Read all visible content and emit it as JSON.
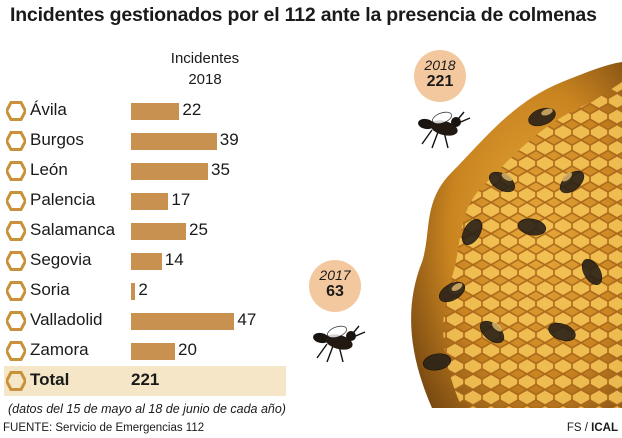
{
  "chart_data": {
    "type": "bar",
    "title": "Incidentes gestionados por el 112 ante la presencia de colmenas",
    "column_header": "Incidentes",
    "column_year": "2018",
    "categories": [
      "Ávila",
      "Burgos",
      "León",
      "Palencia",
      "Salamanca",
      "Segovia",
      "Soria",
      "Valladolid",
      "Zamora"
    ],
    "values": [
      22,
      39,
      35,
      17,
      25,
      14,
      2,
      47,
      20
    ],
    "total_label": "Total",
    "total_value": 221,
    "note": "(datos del 15 de mayo al 18 de junio de cada año)",
    "source": "FUENTE: Servicio de Emergencias 112",
    "bar_color": "#c89150",
    "hex_color": "#c8913a"
  },
  "badges": [
    {
      "year": "2018",
      "value": "221"
    },
    {
      "year": "2017",
      "value": "63"
    }
  ],
  "credit": {
    "prefix": "FS / ",
    "agency": "ICAL"
  }
}
